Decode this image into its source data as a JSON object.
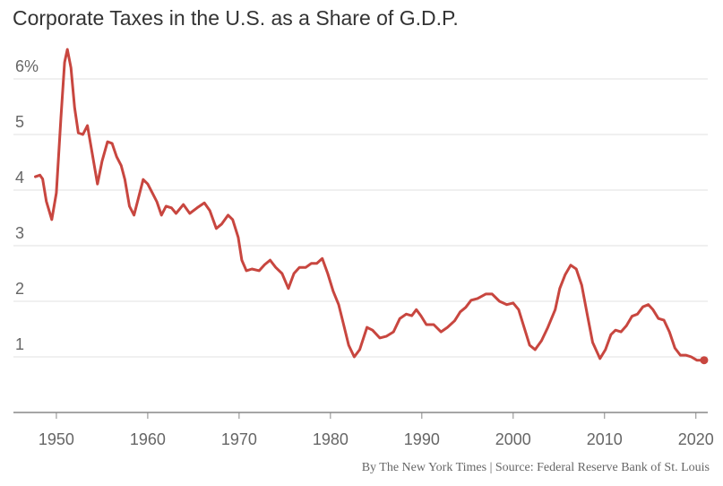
{
  "chart_data": {
    "type": "line",
    "title": "Corporate Taxes in the U.S. as a Share of G.D.P.",
    "source": "By The New York Times | Source: Federal Reserve Bank of St. Louis",
    "color": "#c8463f",
    "grid": true,
    "xlim": [
      1945.3,
      2021.3
    ],
    "xticks": [
      1950,
      1960,
      1970,
      1980,
      1990,
      2000,
      2010,
      2020
    ],
    "ylim": [
      0,
      6.6
    ],
    "yticks": [
      1,
      2,
      3,
      4,
      5,
      {
        "value": 6,
        "label": "6%"
      }
    ],
    "x": [
      1947.7,
      1948.2,
      1948.5,
      1948.9,
      1949.5,
      1950.0,
      1950.5,
      1950.9,
      1951.2,
      1951.6,
      1952.0,
      1952.4,
      1952.9,
      1953.4,
      1953.9,
      1954.5,
      1955.0,
      1955.6,
      1956.1,
      1956.6,
      1957.1,
      1957.5,
      1958.0,
      1958.5,
      1959.0,
      1959.5,
      1960.0,
      1960.5,
      1961.0,
      1961.5,
      1962.0,
      1962.6,
      1963.1,
      1963.9,
      1964.6,
      1965.4,
      1966.2,
      1966.8,
      1967.5,
      1968.1,
      1968.8,
      1969.3,
      1969.9,
      1970.3,
      1970.8,
      1971.4,
      1972.2,
      1972.8,
      1973.4,
      1974.0,
      1974.7,
      1975.4,
      1976.0,
      1976.6,
      1977.3,
      1977.9,
      1978.5,
      1979.1,
      1979.7,
      1980.3,
      1980.9,
      1981.4,
      1982.0,
      1982.6,
      1983.2,
      1984.0,
      1984.6,
      1985.4,
      1986.1,
      1986.9,
      1987.6,
      1988.3,
      1988.9,
      1989.4,
      1989.9,
      1990.5,
      1991.3,
      1992.1,
      1992.8,
      1993.6,
      1994.2,
      1994.8,
      1995.4,
      1996.1,
      1997.0,
      1997.7,
      1998.5,
      1999.3,
      2000.0,
      2000.6,
      2001.2,
      2001.8,
      2002.4,
      2003.1,
      2003.8,
      2004.6,
      2005.1,
      2005.7,
      2006.3,
      2006.9,
      2007.5,
      2008.1,
      2008.7,
      2009.5,
      2010.1,
      2010.7,
      2011.2,
      2011.8,
      2012.4,
      2013.0,
      2013.6,
      2014.2,
      2014.8,
      2015.3,
      2015.9,
      2016.5,
      2017.1,
      2017.7,
      2018.3,
      2018.9,
      2019.5,
      2020.1,
      2020.9
    ],
    "values": [
      4.24,
      4.27,
      4.2,
      3.8,
      3.47,
      3.95,
      5.3,
      6.3,
      6.53,
      6.2,
      5.48,
      5.03,
      5.0,
      5.16,
      4.68,
      4.11,
      4.52,
      4.87,
      4.84,
      4.6,
      4.44,
      4.19,
      3.71,
      3.55,
      3.87,
      4.19,
      4.11,
      3.95,
      3.79,
      3.55,
      3.71,
      3.68,
      3.58,
      3.74,
      3.58,
      3.68,
      3.77,
      3.63,
      3.31,
      3.39,
      3.55,
      3.47,
      3.15,
      2.74,
      2.55,
      2.58,
      2.55,
      2.66,
      2.74,
      2.61,
      2.5,
      2.23,
      2.5,
      2.61,
      2.61,
      2.68,
      2.68,
      2.77,
      2.5,
      2.18,
      1.94,
      1.61,
      1.21,
      1.0,
      1.13,
      1.53,
      1.48,
      1.34,
      1.37,
      1.45,
      1.69,
      1.77,
      1.74,
      1.85,
      1.74,
      1.58,
      1.58,
      1.45,
      1.53,
      1.65,
      1.81,
      1.89,
      2.02,
      2.05,
      2.13,
      2.13,
      2.0,
      1.94,
      1.97,
      1.85,
      1.53,
      1.21,
      1.13,
      1.29,
      1.53,
      1.85,
      2.23,
      2.48,
      2.65,
      2.58,
      2.29,
      1.77,
      1.26,
      0.97,
      1.13,
      1.4,
      1.48,
      1.45,
      1.56,
      1.73,
      1.77,
      1.9,
      1.94,
      1.85,
      1.69,
      1.66,
      1.45,
      1.16,
      1.03,
      1.03,
      1.0,
      0.94,
      0.94
    ]
  }
}
